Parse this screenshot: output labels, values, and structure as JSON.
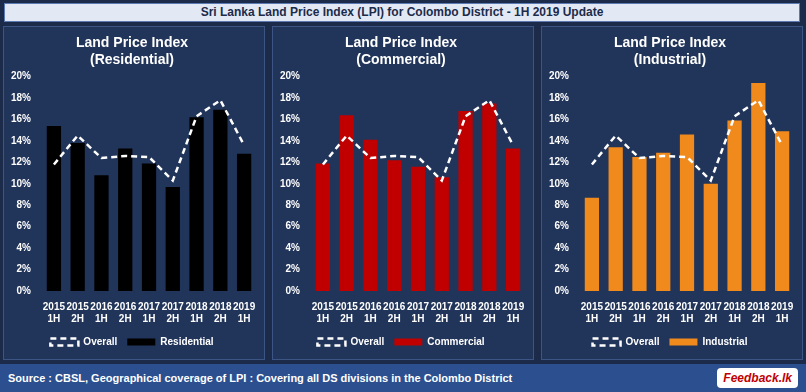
{
  "title": "Sri Lanka Land Price Index (LPI) for Colombo District - 1H 2019 Update",
  "source": "Source : CBSL, Geographical coverage of LPI : Covering all DS divisions in the Colombo District",
  "logo": "Feedback.lk",
  "chart_data": [
    {
      "type": "bar",
      "title": [
        "Land Price Index",
        "(Residential)"
      ],
      "categories": [
        "2015 1H",
        "2015 2H",
        "2016 1H",
        "2016 2H",
        "2017 1H",
        "2017 2H",
        "2018 1H",
        "2018 2H",
        "2019 1H"
      ],
      "series": [
        {
          "name": "Residential",
          "type": "bar",
          "color": "#000000",
          "values": [
            15.4,
            13.8,
            10.8,
            13.3,
            11.9,
            9.7,
            16.2,
            16.9,
            12.8
          ]
        },
        {
          "name": "Overall",
          "type": "line",
          "color": "#ffffff",
          "line_style": "dashed",
          "values": [
            11.8,
            14.5,
            12.4,
            12.6,
            12.5,
            10.3,
            16.3,
            17.8,
            13.6
          ]
        }
      ],
      "ylim": [
        0,
        20
      ],
      "yticks": [
        {
          "value": 0,
          "label": "0%"
        },
        {
          "value": 2,
          "label": "2%"
        },
        {
          "value": 4,
          "label": "4%"
        },
        {
          "value": 6,
          "label": "6%"
        },
        {
          "value": 8,
          "label": "8%"
        },
        {
          "value": 10,
          "label": "10%"
        },
        {
          "value": 12,
          "label": "12%"
        },
        {
          "value": 14,
          "label": "14%"
        },
        {
          "value": 16,
          "label": "16%"
        },
        {
          "value": 18,
          "label": "18%"
        },
        {
          "value": 20,
          "label": "20%"
        }
      ],
      "grid": false,
      "legend": "bottom"
    },
    {
      "type": "bar",
      "title": [
        "Land Price Index",
        "(Commercial)"
      ],
      "categories": [
        "2015 1H",
        "2015 2H",
        "2016 1H",
        "2016 2H",
        "2017 1H",
        "2017 2H",
        "2018 1H",
        "2018 2H",
        "2019 1H"
      ],
      "series": [
        {
          "name": "Commercial",
          "type": "bar",
          "color": "#c00000",
          "values": [
            11.9,
            16.4,
            14.1,
            12.2,
            11.6,
            10.6,
            16.8,
            17.5,
            13.3
          ]
        },
        {
          "name": "Overall",
          "type": "line",
          "color": "#ffffff",
          "line_style": "dashed",
          "values": [
            11.8,
            14.5,
            12.4,
            12.6,
            12.5,
            10.3,
            16.3,
            17.8,
            13.6
          ]
        }
      ],
      "ylim": [
        0,
        20
      ],
      "yticks": [
        {
          "value": 0,
          "label": "0%"
        },
        {
          "value": 2,
          "label": "2%"
        },
        {
          "value": 4,
          "label": "4%"
        },
        {
          "value": 6,
          "label": "6%"
        },
        {
          "value": 8,
          "label": "8%"
        },
        {
          "value": 10,
          "label": "10%"
        },
        {
          "value": 12,
          "label": "12%"
        },
        {
          "value": 14,
          "label": "14%"
        },
        {
          "value": 16,
          "label": "16%"
        },
        {
          "value": 18,
          "label": "18%"
        },
        {
          "value": 20,
          "label": "20%"
        }
      ],
      "grid": false,
      "legend": "bottom"
    },
    {
      "type": "bar",
      "title": [
        "Land Price Index",
        "(Industrial)"
      ],
      "categories": [
        "2015 1H",
        "2015 2H",
        "2016 1H",
        "2016 2H",
        "2017 1H",
        "2017 2H",
        "2018 1H",
        "2018 2H",
        "2019 1H"
      ],
      "series": [
        {
          "name": "Industrial",
          "type": "bar",
          "color": "#f08a1c",
          "values": [
            8.7,
            13.4,
            12.5,
            12.9,
            14.6,
            10.0,
            15.9,
            19.4,
            14.9
          ]
        },
        {
          "name": "Overall",
          "type": "line",
          "color": "#ffffff",
          "line_style": "dashed",
          "values": [
            11.8,
            14.5,
            12.4,
            12.6,
            12.5,
            10.3,
            16.3,
            17.8,
            13.6
          ]
        }
      ],
      "ylim": [
        0,
        20
      ],
      "yticks": [
        {
          "value": 0,
          "label": "0%"
        },
        {
          "value": 2,
          "label": "2%"
        },
        {
          "value": 4,
          "label": "4%"
        },
        {
          "value": 6,
          "label": "6%"
        },
        {
          "value": 8,
          "label": "8%"
        },
        {
          "value": 10,
          "label": "10%"
        },
        {
          "value": 12,
          "label": "12%"
        },
        {
          "value": 14,
          "label": "14%"
        },
        {
          "value": 16,
          "label": "16%"
        },
        {
          "value": 18,
          "label": "18%"
        },
        {
          "value": 20,
          "label": "20%"
        }
      ],
      "grid": false,
      "legend": "bottom"
    }
  ]
}
